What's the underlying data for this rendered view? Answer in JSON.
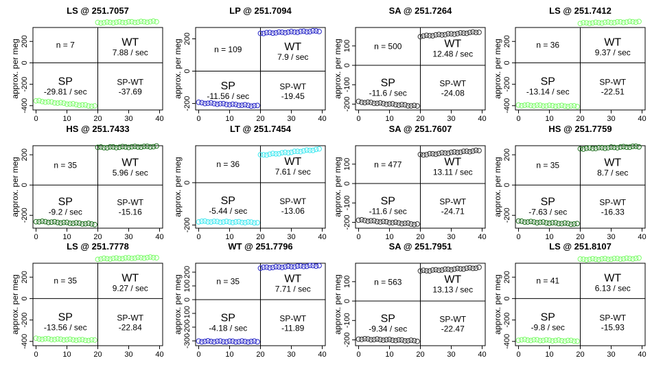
{
  "common": {
    "ylabel": "approx. per meg",
    "xlim": [
      0,
      40
    ],
    "x_ticks": [
      0,
      10,
      20,
      30,
      40
    ],
    "switch_x": 20
  },
  "chart_data": [
    {
      "type": "scatter",
      "title": "LS @ 251.7057",
      "color": "#7cfc6a",
      "ylim": [
        -440,
        330
      ],
      "y_ticks": [
        -400,
        -200,
        0,
        200
      ],
      "sp_start": -355,
      "sp_end": -405,
      "wt_start": 375,
      "wt_end": 385,
      "n_label": "n = 7",
      "wt_label": "WT",
      "wt_rate": "7.88 / sec",
      "sp_label": "SP",
      "sp_rate": "-29.81 / sec",
      "diff_label": "SP-WT",
      "diff_value": "-37.69"
    },
    {
      "type": "scatter",
      "title": "LP @ 251.7094",
      "color": "#2a2ac8",
      "ylim": [
        -240,
        270
      ],
      "y_ticks": [
        -200,
        0,
        200
      ],
      "sp_start": -195,
      "sp_end": -215,
      "wt_start": 235,
      "wt_end": 248,
      "n_label": "n = 109",
      "wt_label": "WT",
      "wt_rate": "7.9 / sec",
      "sp_label": "SP",
      "sp_rate": "-11.56 / sec",
      "diff_label": "SP-WT",
      "diff_value": "-19.45"
    },
    {
      "type": "scatter",
      "title": "SA @ 251.7264",
      "color": "#333333",
      "ylim": [
        -230,
        195
      ],
      "y_ticks": [
        -200,
        -100,
        0,
        100
      ],
      "sp_start": -188,
      "sp_end": -210,
      "wt_start": 150,
      "wt_end": 172,
      "n_label": "n = 500",
      "wt_label": "WT",
      "wt_rate": "12.48 / sec",
      "sp_label": "SP",
      "sp_rate": "-11.6 / sec",
      "diff_label": "SP-WT",
      "diff_value": "-24.08"
    },
    {
      "type": "scatter",
      "title": "LS @ 251.7412",
      "color": "#7cfc6a",
      "ylim": [
        -440,
        330
      ],
      "y_ticks": [
        -400,
        -200,
        0,
        200
      ],
      "sp_start": -395,
      "sp_end": -405,
      "wt_start": 370,
      "wt_end": 385,
      "n_label": "n = 36",
      "wt_label": "WT",
      "wt_rate": "9.37 / sec",
      "sp_label": "SP",
      "sp_rate": "-13.14 / sec",
      "diff_label": "SP-WT",
      "diff_value": "-22.51"
    },
    {
      "type": "scatter",
      "title": "HS @ 251.7433",
      "color": "#1e6e1e",
      "ylim": [
        -285,
        260
      ],
      "y_ticks": [
        -200,
        0,
        200
      ],
      "sp_start": -240,
      "sp_end": -258,
      "wt_start": 248,
      "wt_end": 255,
      "n_label": "n = 35",
      "wt_label": "WT",
      "wt_rate": "5.96 / sec",
      "sp_label": "SP",
      "sp_rate": "-9.2 / sec",
      "diff_label": "SP-WT",
      "diff_value": "-15.16"
    },
    {
      "type": "scatter",
      "title": "LT @ 251.7454",
      "color": "#40e8f0",
      "ylim": [
        -215,
        175
      ],
      "y_ticks": [
        -200,
        0
      ],
      "sp_start": -183,
      "sp_end": -188,
      "wt_start": 130,
      "wt_end": 158,
      "n_label": "n = 36",
      "wt_label": "WT",
      "wt_rate": "7.61 / sec",
      "sp_label": "SP",
      "sp_rate": "-5.44 / sec",
      "diff_label": "SP-WT",
      "diff_value": "-13.06"
    },
    {
      "type": "scatter",
      "title": "SA @ 251.7607",
      "color": "#333333",
      "ylim": [
        -230,
        195
      ],
      "y_ticks": [
        -200,
        -100,
        0,
        100
      ],
      "sp_start": -188,
      "sp_end": -210,
      "wt_start": 148,
      "wt_end": 170,
      "n_label": "n = 477",
      "wt_label": "WT",
      "wt_rate": "13.11 / sec",
      "sp_label": "SP",
      "sp_rate": "-11.6 / sec",
      "diff_label": "SP-WT",
      "diff_value": "-24.71"
    },
    {
      "type": "scatter",
      "title": "HS @ 251.7759",
      "color": "#1e6e1e",
      "ylim": [
        -285,
        260
      ],
      "y_ticks": [
        -200,
        0,
        200
      ],
      "sp_start": -240,
      "sp_end": -258,
      "wt_start": 240,
      "wt_end": 255,
      "n_label": "n = 35",
      "wt_label": "WT",
      "wt_rate": "8.7 / sec",
      "sp_label": "SP",
      "sp_rate": "-7.63 / sec",
      "diff_label": "SP-WT",
      "diff_value": "-16.33"
    },
    {
      "type": "scatter",
      "title": "LS @ 251.7778",
      "color": "#7cfc6a",
      "ylim": [
        -440,
        330
      ],
      "y_ticks": [
        -400,
        -200,
        0,
        200
      ],
      "sp_start": -375,
      "sp_end": -390,
      "wt_start": 370,
      "wt_end": 385,
      "n_label": "n = 35",
      "wt_label": "WT",
      "wt_rate": "9.27 / sec",
      "sp_label": "SP",
      "sp_rate": "-13.56 / sec",
      "diff_label": "SP-WT",
      "diff_value": "-22.84"
    },
    {
      "type": "scatter",
      "title": "WT @ 251.7796",
      "color": "#2a2ac8",
      "ylim": [
        -335,
        265
      ],
      "y_ticks": [
        -300,
        -200,
        -100,
        0,
        100,
        200
      ],
      "sp_start": -303,
      "sp_end": -305,
      "wt_start": 232,
      "wt_end": 248,
      "n_label": "n = 35",
      "wt_label": "WT",
      "wt_rate": "7.71 / sec",
      "sp_label": "SP",
      "sp_rate": "-4.18 / sec",
      "diff_label": "SP-WT",
      "diff_value": "-11.89"
    },
    {
      "type": "scatter",
      "title": "SA @ 251.7951",
      "color": "#333333",
      "ylim": [
        -230,
        195
      ],
      "y_ticks": [
        -200,
        -100,
        0,
        100
      ],
      "sp_start": -195,
      "sp_end": -205,
      "wt_start": 155,
      "wt_end": 172,
      "n_label": "n = 563",
      "wt_label": "WT",
      "wt_rate": "13.13 / sec",
      "sp_label": "SP",
      "sp_rate": "-9.34 / sec",
      "diff_label": "SP-WT",
      "diff_value": "-22.47"
    },
    {
      "type": "scatter",
      "title": "LS @ 251.8107",
      "color": "#7cfc6a",
      "ylim": [
        -440,
        330
      ],
      "y_ticks": [
        -400,
        -200,
        0,
        200
      ],
      "sp_start": -385,
      "sp_end": -395,
      "wt_start": 365,
      "wt_end": 375,
      "n_label": "n = 41",
      "wt_label": "WT",
      "wt_rate": "6.13 / sec",
      "sp_label": "SP",
      "sp_rate": "-9.8 / sec",
      "diff_label": "SP-WT",
      "diff_value": "-15.93"
    }
  ]
}
